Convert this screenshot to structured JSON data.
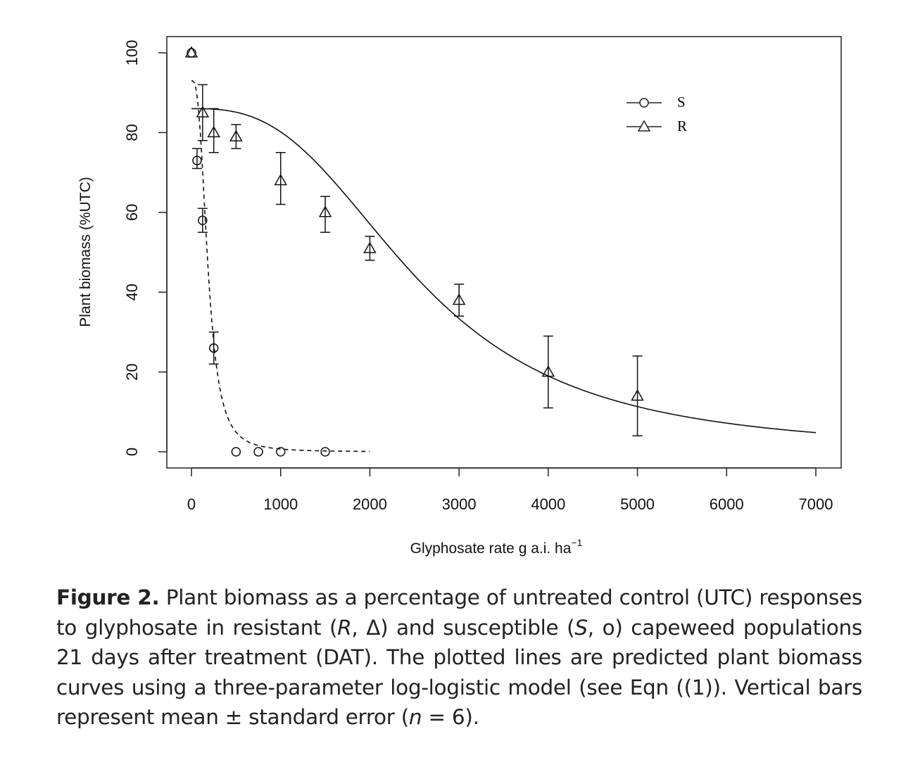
{
  "chart_data": {
    "type": "scatter",
    "title": "",
    "xlabel": "Glyphosate rate g a.i. ha",
    "xlabel_sup": "−1",
    "ylabel": "Plant biomass (%UTC)",
    "xlim": [
      0,
      7000
    ],
    "ylim": [
      0,
      100
    ],
    "xticks": [
      0,
      1000,
      2000,
      3000,
      4000,
      5000,
      6000,
      7000
    ],
    "yticks": [
      0,
      20,
      40,
      60,
      80,
      100
    ],
    "grid": false,
    "legend_position": "top-right",
    "series": [
      {
        "name": "S",
        "marker": "circle",
        "line": "dashed",
        "x": [
          0,
          62.5,
          125,
          250,
          500,
          750,
          1000,
          1500
        ],
        "y": [
          100,
          73,
          58,
          26,
          0,
          0,
          0,
          0
        ],
        "err_low": [
          100,
          71,
          55,
          22,
          0,
          0,
          0,
          0
        ],
        "err_high": [
          100,
          76,
          61,
          30,
          0,
          0,
          0,
          0
        ],
        "model": {
          "d": 93,
          "b": 2.9,
          "e": 185,
          "x_range": [
            0,
            2000
          ]
        }
      },
      {
        "name": "R",
        "marker": "triangle",
        "line": "solid",
        "x": [
          0,
          125,
          250,
          500,
          1000,
          1500,
          2000,
          3000,
          4000,
          5000
        ],
        "y": [
          100,
          85,
          80,
          79,
          68,
          60,
          51,
          38,
          20,
          14
        ],
        "err_low": [
          100,
          78,
          75,
          76,
          62,
          55,
          48,
          34,
          11,
          4
        ],
        "err_high": [
          100,
          92,
          86,
          82,
          75,
          64,
          54,
          42,
          29,
          24
        ],
        "model": {
          "d": 86,
          "b": 2.8,
          "e": 2550,
          "x_range": [
            0,
            7000
          ]
        }
      }
    ]
  },
  "caption": {
    "label": "Figure 2.",
    "t1": " Plant biomass as a percentage of untreated control (UTC) responses to glyphosate in resistant (",
    "r": "R",
    "t2": ", Δ) and susceptible (",
    "s": "S",
    "t3": ", o) capeweed populations 21 days after treatment (DAT). The plotted lines are predicted plant biomass curves using a three-parameter log-logistic model (see Eqn ((1)). Vertical bars represent mean ± standard error (",
    "n": "n",
    "t4": " = 6)."
  }
}
